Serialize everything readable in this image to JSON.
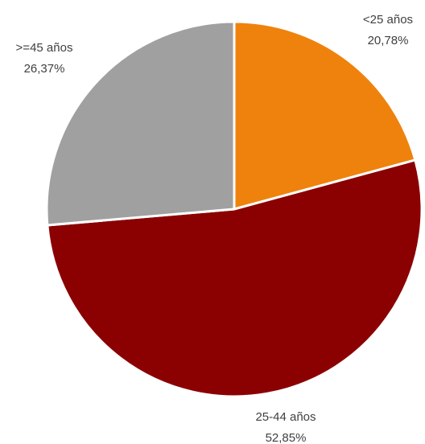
{
  "chart_data": {
    "type": "pie",
    "title": "",
    "start_angle_deg": 0,
    "direction": "clockwise",
    "slices": [
      {
        "label": "<25 años",
        "value": 20.78,
        "value_label": "20,78%",
        "color": "#ef820d"
      },
      {
        "label": "25-44 años",
        "value": 52.85,
        "value_label": "52,85%",
        "color": "#8b0000"
      },
      {
        "label": ">=45 años",
        "value": 26.37,
        "value_label": "26,37%",
        "color": "#a0a0a0"
      }
    ],
    "legend": "none",
    "labels_position": "outside"
  }
}
